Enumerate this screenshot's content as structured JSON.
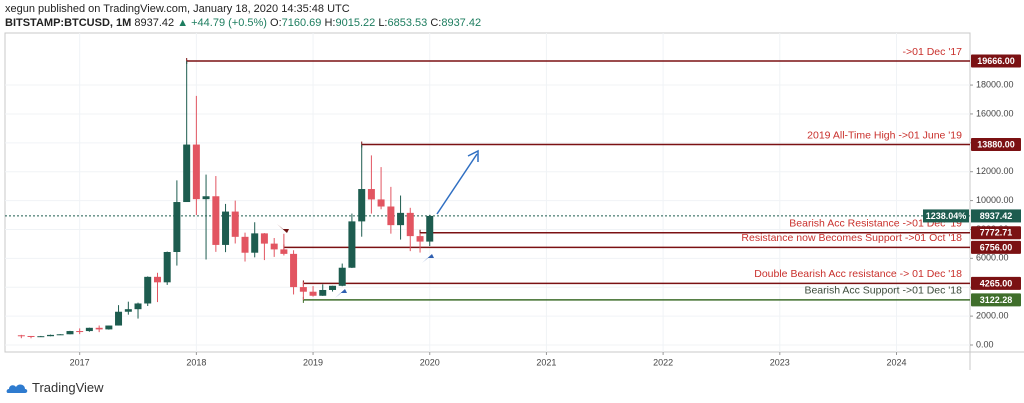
{
  "header": {
    "publisher": "xegun published on TradingView.com, January 18, 2020 14:35:48 UTC",
    "symbol": "BITSTAMP:BTCUSD, 1M",
    "last": "8937.42",
    "change": "▲ +44.79 (+0.5%)",
    "ohlc": [
      {
        "k": "O:",
        "v": "7160.69"
      },
      {
        "k": "H:",
        "v": "9015.22"
      },
      {
        "k": "L:",
        "v": "6853.53"
      },
      {
        "k": "C:",
        "v": "8937.42"
      }
    ]
  },
  "footer": {
    "brand": "TradingView"
  },
  "chart_data": {
    "type": "candlestick",
    "x": [
      2016.5,
      2016.583,
      2016.667,
      2016.75,
      2016.833,
      2016.917,
      2017,
      2017.083,
      2017.167,
      2017.25,
      2017.333,
      2017.417,
      2017.5,
      2017.583,
      2017.667,
      2017.75,
      2017.833,
      2017.917,
      2018,
      2018.083,
      2018.167,
      2018.25,
      2018.333,
      2018.417,
      2018.5,
      2018.583,
      2018.667,
      2018.75,
      2018.833,
      2018.917,
      2019,
      2019.083,
      2019.167,
      2019.25,
      2019.333,
      2019.417,
      2019.5,
      2019.583,
      2019.667,
      2019.75,
      2019.833,
      2019.917,
      2020
    ],
    "open": [
      673,
      624,
      573,
      609,
      700,
      742,
      966,
      965,
      1190,
      1080,
      1348,
      2303,
      2480,
      2875,
      4720,
      4340,
      6440,
      9900,
      13880,
      10100,
      10300,
      6930,
      9240,
      7490,
      6390,
      7730,
      7020,
      6620,
      6310,
      4010,
      3690,
      3410,
      3810,
      4100,
      5350,
      8560,
      10800,
      10080,
      9590,
      8300,
      9150,
      7540,
      7160.69
    ],
    "high": [
      704,
      626,
      628,
      720,
      755,
      980,
      1150,
      1200,
      1350,
      1350,
      2760,
      3000,
      2933,
      4750,
      5000,
      6470,
      11400,
      19666,
      17250,
      11800,
      11700,
      9770,
      10000,
      7780,
      8500,
      7750,
      7410,
      7700,
      6560,
      4350,
      4080,
      4200,
      4100,
      5640,
      9100,
      13880,
      13130,
      12320,
      10950,
      10350,
      9500,
      7750,
      9015.22
    ],
    "low": [
      470,
      465,
      566,
      604,
      690,
      740,
      752,
      918,
      891,
      1061,
      1348,
      2100,
      1830,
      2700,
      2972,
      4160,
      5500,
      9900,
      9000,
      5920,
      6450,
      6430,
      7030,
      5780,
      6070,
      5880,
      6100,
      6200,
      3500,
      3122,
      3350,
      3400,
      3700,
      4070,
      5330,
      7500,
      9100,
      9400,
      7710,
      7300,
      6500,
      6400,
      6853.53
    ],
    "close": [
      624,
      573,
      609,
      700,
      742,
      966,
      965,
      1190,
      1080,
      1348,
      2303,
      2480,
      2875,
      4720,
      4340,
      6440,
      9900,
      13880,
      10100,
      10300,
      6930,
      9240,
      7490,
      6390,
      7730,
      7020,
      6620,
      6310,
      4010,
      3690,
      3410,
      3810,
      4100,
      5350,
      8560,
      10800,
      10080,
      9590,
      8300,
      9150,
      7540,
      7160.69,
      8937.42
    ],
    "up_color": "#1d5c4f",
    "down_color": "#e25561",
    "xlim": [
      2016.36,
      2024.63
    ],
    "xticks": [
      2017,
      2018,
      2019,
      2020,
      2021,
      2022,
      2023,
      2024
    ],
    "ylim": [
      -485,
      21605
    ],
    "yticks": [
      {
        "value": 0,
        "label": "0.00"
      },
      {
        "value": 2000,
        "label": "2000.00"
      },
      {
        "value": 4000,
        "label": "4000.00"
      },
      {
        "value": 6000,
        "label": "6000.00"
      },
      {
        "value": 8000,
        "label": "8000.00"
      },
      {
        "value": 10000,
        "label": "10000.00"
      },
      {
        "value": 12000,
        "label": "12000.00"
      },
      {
        "value": 14000,
        "label": "14000.00"
      },
      {
        "value": 16000,
        "label": "16000.00"
      },
      {
        "value": 18000,
        "label": "18000.00"
      }
    ],
    "grid": true,
    "levels": [
      {
        "value": 19666,
        "value_label": "19666.00",
        "text": "->01 Dec '17",
        "from": 2017.917,
        "color": "#7b1113",
        "text_color": "#c9302c"
      },
      {
        "value": 13880,
        "value_label": "13880.00",
        "text": "2019 All-Time High ->01 June '19",
        "from": 2019.417,
        "color": "#7b1113",
        "text_color": "#c9302c"
      },
      {
        "value": 7772.71,
        "value_label": "7772.71",
        "text": "Bearish Acc Resistance ->01 Dec '19",
        "from": 2019.917,
        "color": "#7b1113",
        "text_color": "#c9302c"
      },
      {
        "value": 6756,
        "value_label": "6756.00",
        "text": "Resistance now Becomes Support ->01 Oct '18",
        "from": 2018.75,
        "color": "#7b1113",
        "text_color": "#c9302c"
      },
      {
        "value": 4265,
        "value_label": "4265.00",
        "text": "Double Bearish Acc resistance -> 01 Dec '18",
        "from": 2018.917,
        "color": "#7b1113",
        "text_color": "#c9302c"
      },
      {
        "value": 3122.28,
        "value_label": "3122.28",
        "text": "Bearish Acc Support ->01 Dec '18",
        "from": 2018.917,
        "color": "#3f6e2b",
        "text_color": "#3b4a3a"
      }
    ],
    "last_price": 8937.42,
    "last_price_label": "8937.42",
    "last_change_label": "1238.04%",
    "last_color": "#1d5c4f"
  }
}
